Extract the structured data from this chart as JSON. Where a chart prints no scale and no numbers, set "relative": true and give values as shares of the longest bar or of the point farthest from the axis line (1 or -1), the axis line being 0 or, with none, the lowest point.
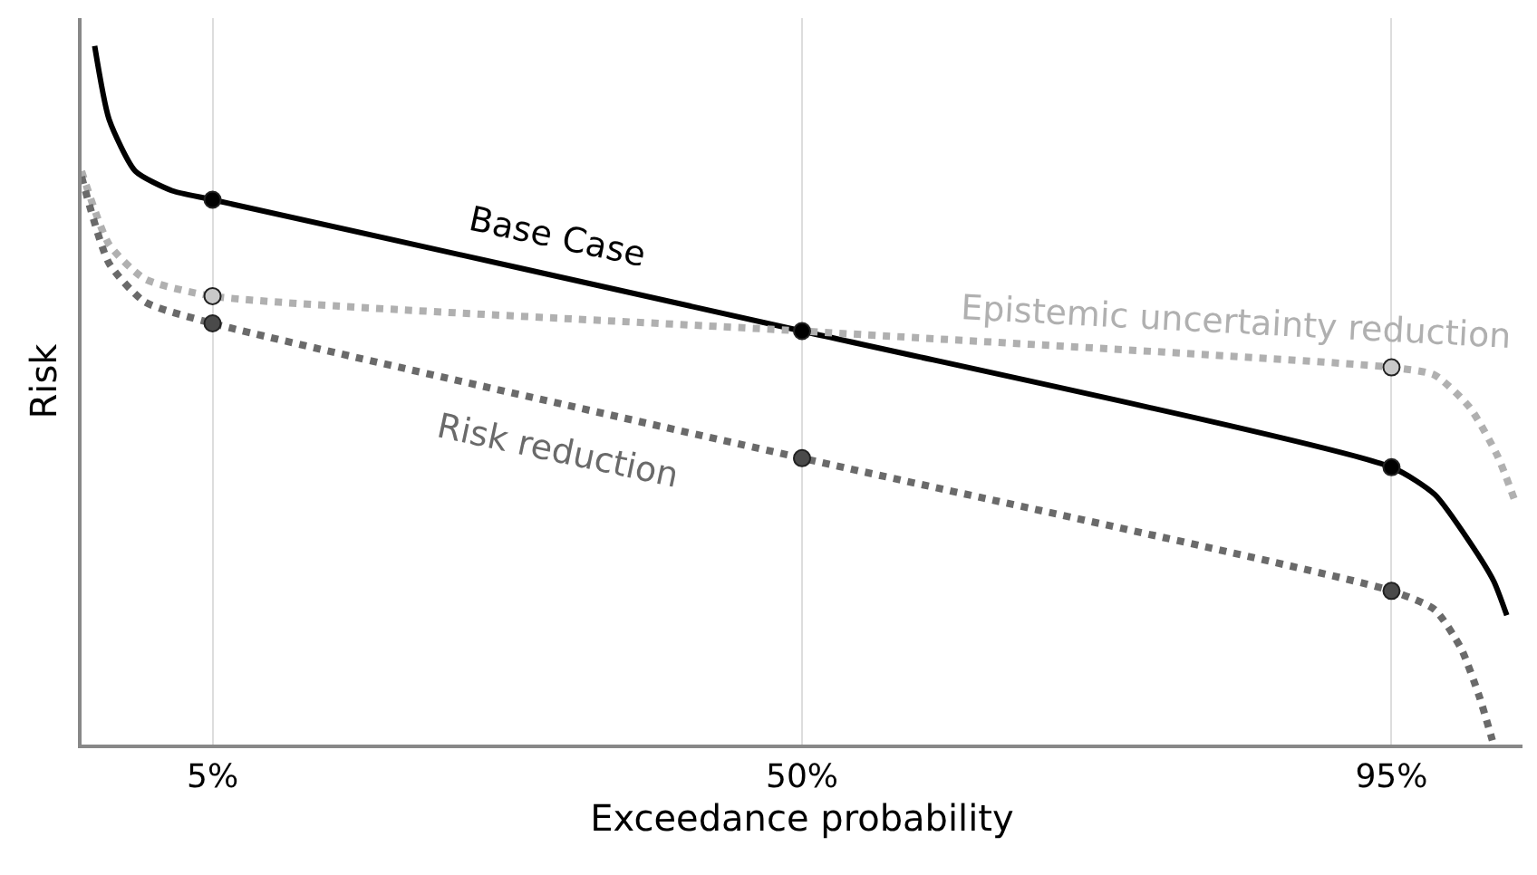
{
  "chart_data": {
    "type": "line",
    "relative": true,
    "xlabel": "Exceedance probability",
    "ylabel": "Risk",
    "xlim": [
      -5,
      105
    ],
    "xticks": [
      {
        "value": 5,
        "label": "5%"
      },
      {
        "value": 50,
        "label": "50%"
      },
      {
        "value": 95,
        "label": "95%"
      }
    ],
    "grid": "x",
    "tick_labels": "x",
    "series": [
      {
        "name": "Base Case",
        "color": "#000000",
        "line_style": "solid",
        "marker": "none",
        "x": [
          -4,
          -2.9,
          -0.9,
          1.9,
          5,
          50,
          95,
          98.3,
          101,
          102.8,
          103.8
        ],
        "values": [
          1,
          0.895,
          0.821,
          0.793,
          0.78,
          0.592,
          0.397,
          0.358,
          0.289,
          0.234,
          0.185
        ]
      },
      {
        "name": "Epistemic uncertainty reduction",
        "color": "#b0b0b0",
        "line_style": "dotted",
        "marker": "none",
        "x": [
          -5,
          -2.9,
          -0.2,
          5,
          50,
          95,
          98.3,
          101,
          103.1,
          104.4
        ],
        "values": [
          0.821,
          0.716,
          0.667,
          0.642,
          0.592,
          0.54,
          0.529,
          0.482,
          0.413,
          0.35
        ]
      },
      {
        "name": "Risk reduction",
        "color": "#6a6a6a",
        "line_style": "dotted",
        "marker": "none",
        "x": [
          -5,
          -2.9,
          -0.2,
          5,
          50,
          95,
          98.3,
          100.3,
          101.7,
          102.7
        ],
        "values": [
          0.813,
          0.689,
          0.634,
          0.603,
          0.41,
          0.22,
          0.193,
          0.138,
          0.069,
          0.006
        ]
      },
      {
        "type": "scatter",
        "marker": "circle",
        "color": "#000000",
        "x": [
          5,
          50,
          95
        ],
        "values": [
          0.78,
          0.592,
          0.397
        ]
      },
      {
        "type": "scatter",
        "marker": "circle",
        "color": "#c8c8c8",
        "x": [
          5,
          95
        ],
        "values": [
          0.642,
          0.54
        ]
      },
      {
        "type": "scatter",
        "marker": "circle",
        "color": "#4a4a4a",
        "x": [
          5,
          50,
          95
        ],
        "values": [
          0.603,
          0.41,
          0.22
        ]
      }
    ]
  }
}
